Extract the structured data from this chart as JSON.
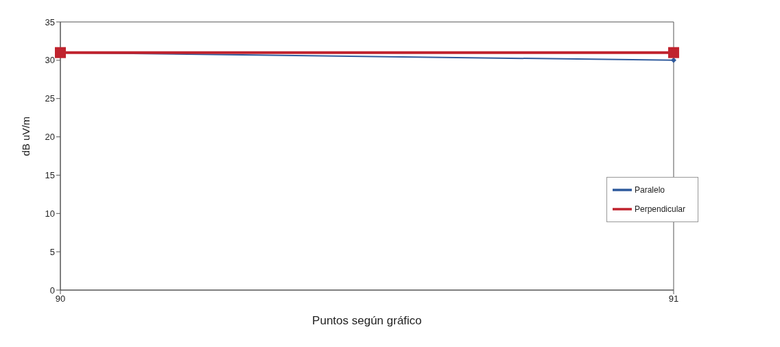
{
  "chart_data": {
    "type": "line",
    "xlabel": "Puntos según gráfico",
    "ylabel": "dB uV/m",
    "x": [
      90,
      91
    ],
    "xlim": [
      90,
      91
    ],
    "xticks": [
      90,
      91
    ],
    "ylim": [
      0,
      35
    ],
    "yticks": [
      0,
      5,
      10,
      15,
      20,
      25,
      30,
      35
    ],
    "grid": false,
    "legend": "right",
    "line_style": "solid",
    "series": [
      {
        "name": "Paralelo",
        "color": "#2e5a9c",
        "values": [
          31,
          30
        ],
        "marker": "diamond"
      },
      {
        "name": "Perpendicular",
        "color": "#c0232e",
        "values": [
          31,
          31
        ],
        "marker": "square"
      }
    ]
  }
}
